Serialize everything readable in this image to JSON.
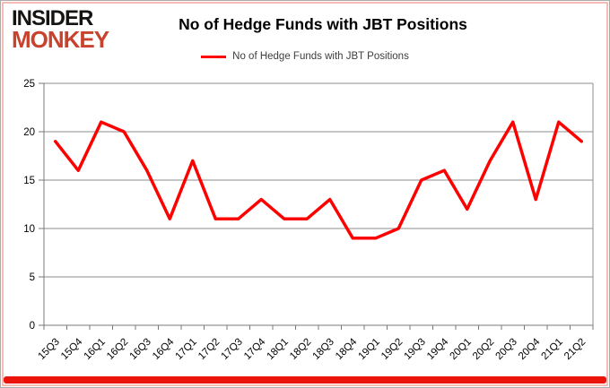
{
  "logo": {
    "line1": "INSIDER",
    "line2": "MONKEY",
    "accent_color": "#c8432e"
  },
  "header": {
    "title": "No of Hedge Funds with JBT Positions"
  },
  "legend": {
    "label": "No of Hedge Funds with JBT Positions",
    "color": "#ff0000"
  },
  "chart_data": {
    "type": "line",
    "title": "No of Hedge Funds with JBT Positions",
    "categories": [
      "15Q3",
      "15Q4",
      "16Q1",
      "16Q2",
      "16Q3",
      "16Q4",
      "17Q1",
      "17Q2",
      "17Q3",
      "17Q4",
      "18Q1",
      "18Q2",
      "18Q3",
      "18Q4",
      "19Q1",
      "19Q2",
      "19Q3",
      "19Q4",
      "20Q1",
      "20Q2",
      "20Q3",
      "20Q4",
      "21Q1",
      "21Q2"
    ],
    "series": [
      {
        "name": "No of Hedge Funds with JBT Positions",
        "color": "#ff0000",
        "values": [
          19,
          16,
          21,
          20,
          16,
          11,
          17,
          11,
          11,
          13,
          11,
          11,
          13,
          9,
          9,
          10,
          15,
          16,
          12,
          17,
          21,
          13,
          21,
          19
        ]
      }
    ],
    "xlabel": "",
    "ylabel": "",
    "ylim": [
      0,
      25
    ],
    "yticks": [
      0,
      5,
      10,
      15,
      20,
      25
    ],
    "grid": true,
    "legend_position": "top",
    "grid_color": "#8c8c8c",
    "axis_color": "#7a7a7a",
    "label_color": "#000000"
  }
}
